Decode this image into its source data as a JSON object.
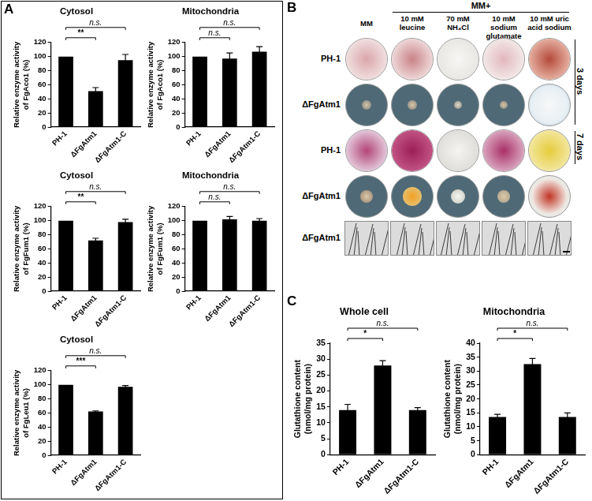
{
  "panel_labels": [
    "A",
    "B",
    "C"
  ],
  "chart_data": [
    {
      "type": "bar",
      "title": "Cytosol",
      "y_label": [
        "Relative enzyme activity",
        "of FgAco1 (%)"
      ],
      "categories": [
        "PH-1",
        "ΔFgAtm1",
        "ΔFgAtm1-C"
      ],
      "values": [
        100,
        51,
        95
      ],
      "errors": [
        0,
        5,
        8
      ],
      "color": "#000000",
      "ylim": [
        0,
        120
      ],
      "yticks": [
        0,
        20,
        40,
        60,
        80,
        100,
        120
      ],
      "grid": false,
      "significance": [
        {
          "pair": [
            "PH-1",
            "ΔFgAtm1"
          ],
          "label": "**"
        },
        {
          "pair": [
            "PH-1",
            "ΔFgAtm1-C"
          ],
          "label": "n.s."
        }
      ]
    },
    {
      "type": "bar",
      "title": "Mitochondria",
      "y_label": [
        "Relative enzyme activity",
        "of FgAco1 (%)"
      ],
      "categories": [
        "PH-1",
        "ΔFgAtm1",
        "ΔFgAtm1-C"
      ],
      "values": [
        100,
        97,
        107
      ],
      "errors": [
        0,
        8,
        7
      ],
      "color": "#000000",
      "ylim": [
        0,
        120
      ],
      "yticks": [
        0,
        20,
        40,
        60,
        80,
        100,
        120
      ],
      "grid": false,
      "significance": [
        {
          "pair": [
            "PH-1",
            "ΔFgAtm1"
          ],
          "label": "n.s."
        },
        {
          "pair": [
            "PH-1",
            "ΔFgAtm1-C"
          ],
          "label": "n.s."
        }
      ]
    },
    {
      "type": "bar",
      "title": "Cytosol",
      "y_label": [
        "Relative enzyme activity",
        "of FgFum1 (%)"
      ],
      "categories": [
        "PH-1",
        "ΔFgAtm1",
        "ΔFgAtm1-C"
      ],
      "values": [
        100,
        72,
        98
      ],
      "errors": [
        0,
        3,
        4
      ],
      "color": "#000000",
      "ylim": [
        0,
        120
      ],
      "yticks": [
        0,
        20,
        40,
        60,
        80,
        100,
        120
      ],
      "grid": false,
      "significance": [
        {
          "pair": [
            "PH-1",
            "ΔFgAtm1"
          ],
          "label": "**"
        },
        {
          "pair": [
            "PH-1",
            "ΔFgAtm1-C"
          ],
          "label": "n.s."
        }
      ]
    },
    {
      "type": "bar",
      "title": "Mitochondria",
      "y_label": [
        "Relative enzyme activity",
        "of FgFum1 (%)"
      ],
      "categories": [
        "PH-1",
        "ΔFgAtm1",
        "ΔFgAtm1-C"
      ],
      "values": [
        100,
        102,
        100
      ],
      "errors": [
        0,
        4,
        3
      ],
      "color": "#000000",
      "ylim": [
        0,
        120
      ],
      "yticks": [
        0,
        20,
        40,
        60,
        80,
        100,
        120
      ],
      "grid": false,
      "significance": [
        {
          "pair": [
            "PH-1",
            "ΔFgAtm1"
          ],
          "label": "n.s."
        },
        {
          "pair": [
            "PH-1",
            "ΔFgAtm1-C"
          ],
          "label": "n.s."
        }
      ]
    },
    {
      "type": "bar",
      "title": "Cytosol",
      "y_label": [
        "Relative enzyme activity",
        "of FgLeu1 (%)"
      ],
      "categories": [
        "PH-1",
        "ΔFgAtm1",
        "ΔFgAtm1-C"
      ],
      "values": [
        100,
        62,
        97
      ],
      "errors": [
        0,
        1,
        2
      ],
      "color": "#000000",
      "ylim": [
        0,
        120
      ],
      "yticks": [
        0,
        20,
        40,
        60,
        80,
        100,
        120
      ],
      "grid": false,
      "significance": [
        {
          "pair": [
            "PH-1",
            "ΔFgAtm1"
          ],
          "label": "***"
        },
        {
          "pair": [
            "PH-1",
            "ΔFgAtm1-C"
          ],
          "label": "n.s."
        }
      ]
    },
    {
      "type": "bar",
      "title": "Whole cell",
      "y_label": [
        "Glutathione content",
        "(nmol/mg protein)"
      ],
      "categories": [
        "PH-1",
        "ΔFgAtm1",
        "ΔFgAtm1-C"
      ],
      "values": [
        14,
        28,
        14
      ],
      "errors": [
        1.8,
        1.5,
        0.8
      ],
      "color": "#000000",
      "ylim": [
        0,
        35
      ],
      "yticks": [
        0,
        5,
        10,
        15,
        20,
        25,
        30,
        35
      ],
      "grid": false,
      "significance": [
        {
          "pair": [
            "PH-1",
            "ΔFgAtm1"
          ],
          "label": "*"
        },
        {
          "pair": [
            "PH-1",
            "ΔFgAtm1-C"
          ],
          "label": "n.s."
        }
      ]
    },
    {
      "type": "bar",
      "title": "Mitochondria",
      "y_label": [
        "Glutathione content",
        "(nmol/mg protein)"
      ],
      "categories": [
        "PH-1",
        "ΔFgAtm1",
        "ΔFgAtm1-C"
      ],
      "values": [
        13.5,
        32.5,
        13.5
      ],
      "errors": [
        1,
        2,
        1.5
      ],
      "color": "#000000",
      "ylim": [
        0,
        40
      ],
      "yticks": [
        0,
        5,
        10,
        15,
        20,
        25,
        30,
        35,
        40
      ],
      "grid": false,
      "significance": [
        {
          "pair": [
            "PH-1",
            "ΔFgAtm1"
          ],
          "label": "*"
        },
        {
          "pair": [
            "PH-1",
            "ΔFgAtm1-C"
          ],
          "label": "n.s."
        }
      ]
    }
  ],
  "panel_b": {
    "header": "MM+",
    "columns": [
      "MM",
      "10 mM leucine",
      "70 mM NH₄Cl",
      "10 mM sodium glutamate",
      "10 mM uric acid sodium"
    ],
    "rows": [
      "PH-1",
      "ΔFgAtm1",
      "PH-1",
      "ΔFgAtm1",
      "ΔFgAtm1"
    ],
    "time_labels": [
      "3 days",
      "7 days"
    ]
  }
}
